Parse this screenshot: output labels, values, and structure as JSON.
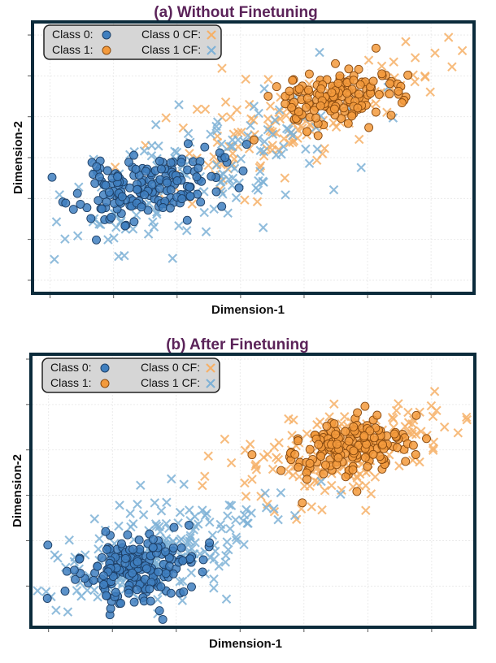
{
  "colors": {
    "class0": "#3f7fbf",
    "class1": "#f39a3c",
    "cf0": "#f6b067",
    "cf1": "#7eb1d6",
    "title": "#5b2359",
    "frame": "#0b2b3b",
    "legend_bg": "#d6d6d6"
  },
  "legend_labels": {
    "class0": "Class 0:",
    "class1": "Class 1:",
    "cf0": "Class 0 CF:",
    "cf1": "Class 1 CF:"
  },
  "chart_data": [
    {
      "type": "scatter",
      "title": "(a) Without Finetuning",
      "xlabel": "Dimension-1",
      "ylabel": "Dimension-2",
      "xlim": [
        -3.2,
        3.6
      ],
      "ylim": [
        -3.2,
        3.2
      ],
      "grid": true,
      "legend": "top-left",
      "series": [
        {
          "name": "Class 0",
          "marker": "circle",
          "color_key": "class0",
          "n": 170,
          "cx": -1.5,
          "cy": -0.75,
          "sx": 0.55,
          "sy": 0.4,
          "rho": 0.35,
          "seed": 11
        },
        {
          "name": "Class 1",
          "marker": "circle",
          "color_key": "class1",
          "n": 150,
          "cx": 1.5,
          "cy": 1.45,
          "sx": 0.5,
          "sy": 0.35,
          "rho": 0.3,
          "seed": 23
        },
        {
          "name": "Class 0 CF",
          "marker": "x",
          "color_key": "cf0",
          "n": 150,
          "cx": 1.0,
          "cy": 1.0,
          "sx": 1.1,
          "sy": 0.85,
          "rho": 0.7,
          "seed": 37
        },
        {
          "name": "Class 1 CF",
          "marker": "x",
          "color_key": "cf1",
          "n": 150,
          "cx": -0.8,
          "cy": -0.5,
          "sx": 1.1,
          "sy": 0.95,
          "rho": 0.6,
          "seed": 51
        }
      ]
    },
    {
      "type": "scatter",
      "title": "(b) After Finetuning",
      "xlabel": "Dimension-1",
      "ylabel": "Dimension-2",
      "xlim": [
        -3.2,
        3.6
      ],
      "ylim": [
        -2.8,
        3.0
      ],
      "grid": true,
      "legend": "top-left",
      "series": [
        {
          "name": "Class 0",
          "marker": "circle",
          "color_key": "class0",
          "n": 200,
          "cx": -1.7,
          "cy": -1.65,
          "sx": 0.5,
          "sy": 0.38,
          "rho": 0.2,
          "seed": 61
        },
        {
          "name": "Class 1",
          "marker": "circle",
          "color_key": "class1",
          "n": 170,
          "cx": 1.75,
          "cy": 1.05,
          "sx": 0.5,
          "sy": 0.3,
          "rho": 0.25,
          "seed": 73
        },
        {
          "name": "Class 0 CF",
          "marker": "x",
          "color_key": "cf0",
          "n": 190,
          "cx": 1.55,
          "cy": 0.95,
          "sx": 0.8,
          "sy": 0.55,
          "rho": 0.55,
          "seed": 89
        },
        {
          "name": "Class 1 CF",
          "marker": "x",
          "color_key": "cf1",
          "n": 200,
          "cx": -1.35,
          "cy": -1.3,
          "sx": 0.9,
          "sy": 0.65,
          "rho": 0.45,
          "seed": 97
        }
      ]
    }
  ]
}
